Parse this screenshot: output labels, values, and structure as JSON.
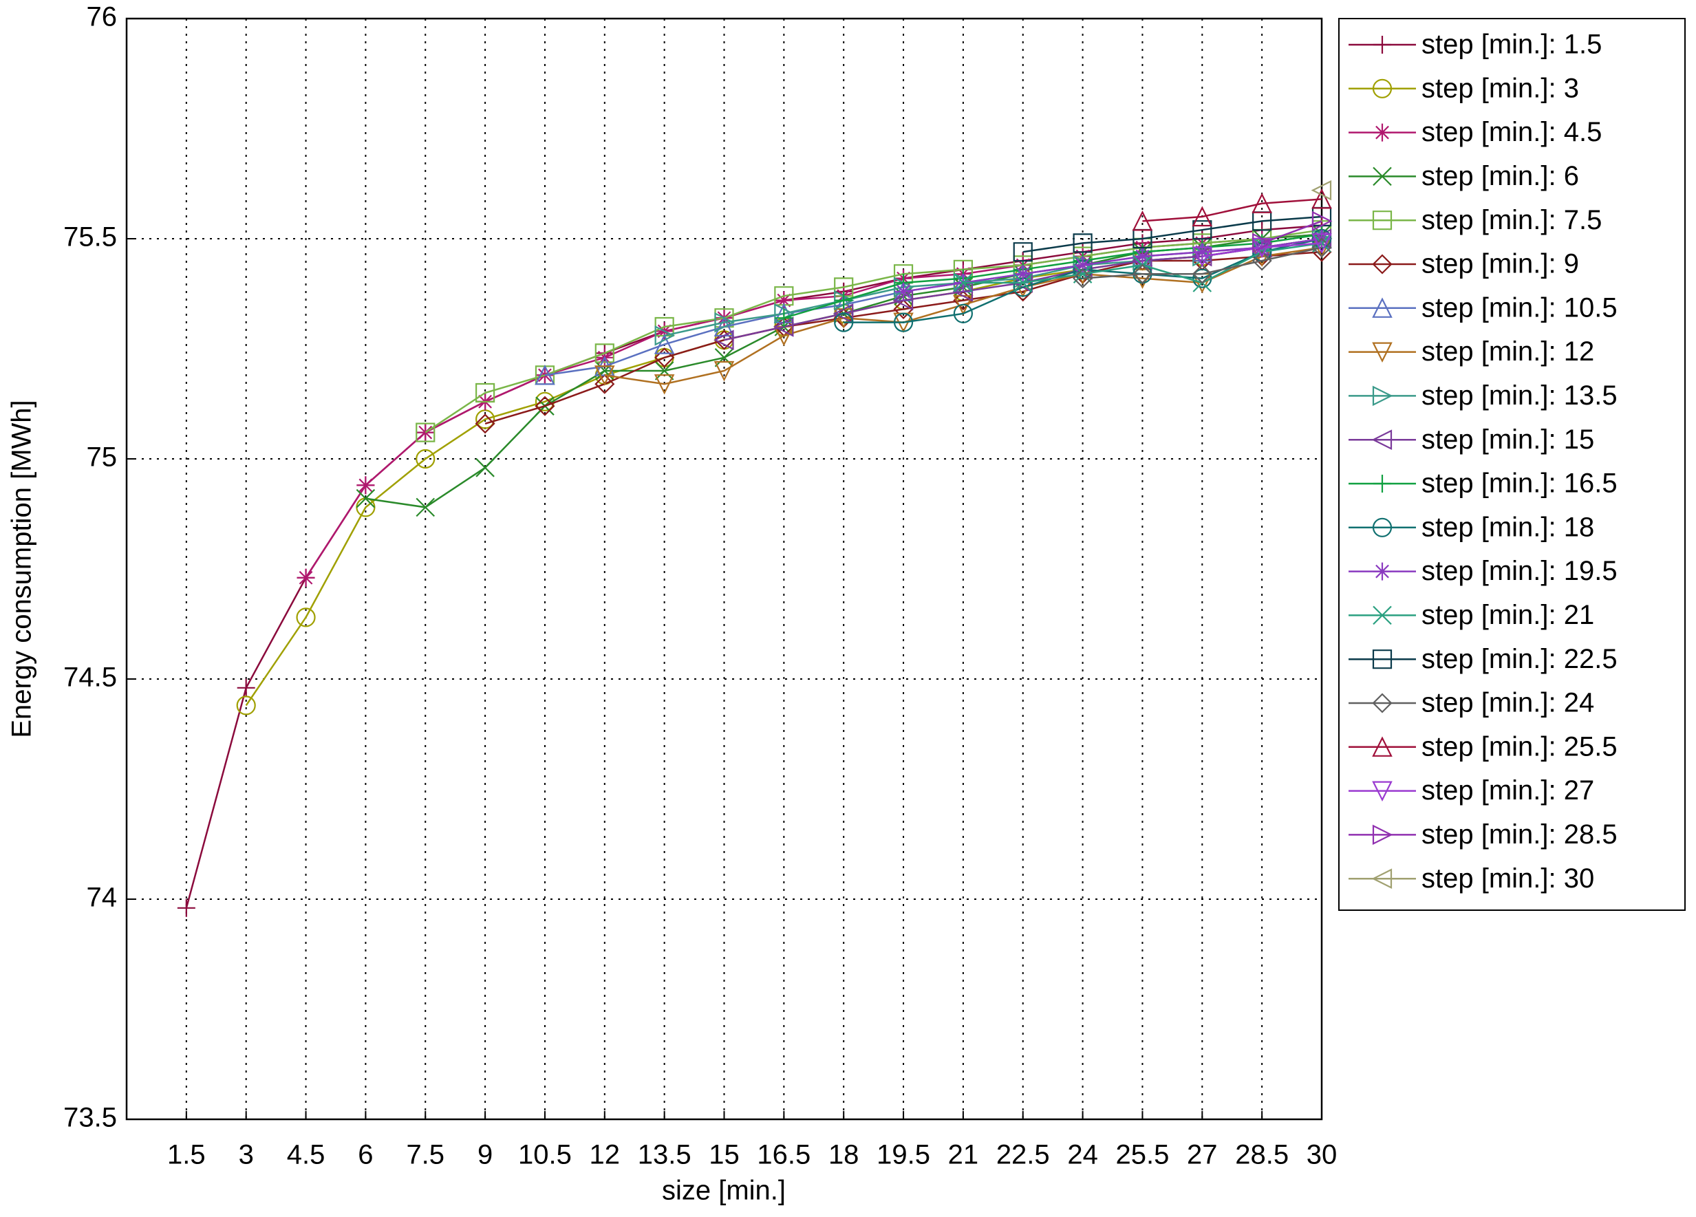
{
  "chart_data": {
    "type": "line",
    "x_label": "size [min.]",
    "y_label": "Energy consumption [MWh]",
    "x": [
      1.5,
      3,
      4.5,
      6,
      7.5,
      9,
      10.5,
      12,
      13.5,
      15,
      16.5,
      18,
      19.5,
      21,
      22.5,
      24,
      25.5,
      27,
      28.5,
      30
    ],
    "xlim": [
      0,
      30
    ],
    "xticks": [
      1.5,
      3,
      4.5,
      6,
      7.5,
      9,
      10.5,
      12,
      13.5,
      15,
      16.5,
      18,
      19.5,
      21,
      22.5,
      24,
      25.5,
      27,
      28.5,
      30
    ],
    "ylim": [
      73.5,
      76
    ],
    "yticks": [
      73.5,
      74,
      74.5,
      75,
      75.5,
      76
    ],
    "grid": true,
    "legend": "outside-right",
    "series": [
      {
        "name": "step [min.]: 1.5",
        "color": "#8b0a3c",
        "marker": "plus",
        "values": [
          73.98,
          74.48,
          74.73,
          74.94,
          75.06,
          75.13,
          75.19,
          75.24,
          75.29,
          75.32,
          75.36,
          75.38,
          75.41,
          75.43,
          75.45,
          75.47,
          75.49,
          75.5,
          75.52,
          75.53
        ]
      },
      {
        "name": "step [min.]: 3",
        "color": "#a0a000",
        "marker": "circle",
        "values": [
          null,
          74.44,
          74.64,
          74.89,
          75.0,
          75.09,
          75.13,
          75.19,
          75.23,
          75.27,
          75.3,
          75.33,
          75.36,
          75.38,
          75.41,
          75.43,
          75.45,
          75.46,
          75.48,
          75.5
        ]
      },
      {
        "name": "step [min.]: 4.5",
        "color": "#b0186e",
        "marker": "star",
        "values": [
          null,
          null,
          74.73,
          74.94,
          75.06,
          75.13,
          75.19,
          75.23,
          75.29,
          75.32,
          75.36,
          75.37,
          75.41,
          75.42,
          75.44,
          75.46,
          75.48,
          75.49,
          75.5,
          75.51
        ]
      },
      {
        "name": "step [min.]: 6",
        "color": "#2a8a2a",
        "marker": "x",
        "values": [
          null,
          null,
          null,
          74.91,
          74.89,
          74.98,
          75.12,
          75.2,
          75.2,
          75.23,
          75.3,
          75.33,
          75.37,
          75.39,
          75.42,
          75.44,
          75.47,
          75.48,
          75.5,
          75.51
        ]
      },
      {
        "name": "step [min.]: 7.5",
        "color": "#7ab648",
        "marker": "square",
        "values": [
          null,
          null,
          null,
          null,
          75.06,
          75.15,
          75.19,
          75.24,
          75.3,
          75.32,
          75.37,
          75.39,
          75.42,
          75.43,
          75.44,
          75.46,
          75.48,
          75.49,
          75.5,
          75.52
        ]
      },
      {
        "name": "step [min.]: 9",
        "color": "#8b1a1a",
        "marker": "diamond",
        "values": [
          null,
          null,
          null,
          null,
          null,
          75.08,
          75.12,
          75.17,
          75.23,
          75.27,
          75.3,
          75.32,
          75.34,
          75.36,
          75.38,
          75.42,
          75.45,
          75.45,
          75.46,
          75.47
        ]
      },
      {
        "name": "step [min.]: 10.5",
        "color": "#5a70c0",
        "marker": "triangle-up",
        "values": [
          null,
          null,
          null,
          null,
          null,
          null,
          75.19,
          75.21,
          75.26,
          75.3,
          75.33,
          75.35,
          75.38,
          75.4,
          75.42,
          75.44,
          75.46,
          75.47,
          75.48,
          75.5
        ]
      },
      {
        "name": "step [min.]: 12",
        "color": "#b07020",
        "marker": "triangle-down",
        "values": [
          null,
          null,
          null,
          null,
          null,
          null,
          null,
          75.19,
          75.17,
          75.2,
          75.28,
          75.32,
          75.31,
          75.35,
          75.39,
          75.42,
          75.41,
          75.4,
          75.46,
          75.48
        ]
      },
      {
        "name": "step [min.]: 13.5",
        "color": "#3a9a8a",
        "marker": "triangle-right",
        "values": [
          null,
          null,
          null,
          null,
          null,
          null,
          null,
          null,
          75.28,
          75.31,
          75.33,
          75.36,
          75.39,
          75.4,
          75.41,
          75.44,
          75.45,
          75.46,
          75.48,
          75.5
        ]
      },
      {
        "name": "step [min.]: 15",
        "color": "#7a3a9a",
        "marker": "triangle-left",
        "values": [
          null,
          null,
          null,
          null,
          null,
          null,
          null,
          null,
          null,
          75.27,
          75.3,
          75.33,
          75.36,
          75.38,
          75.4,
          75.43,
          75.45,
          75.46,
          75.48,
          75.5
        ]
      },
      {
        "name": "step [min.]: 16.5",
        "color": "#10a040",
        "marker": "plus",
        "values": [
          null,
          null,
          null,
          null,
          null,
          null,
          null,
          null,
          null,
          null,
          75.32,
          75.36,
          75.4,
          75.41,
          75.43,
          75.45,
          75.47,
          75.48,
          75.49,
          75.51
        ]
      },
      {
        "name": "step [min.]: 18",
        "color": "#107070",
        "marker": "circle",
        "values": [
          null,
          null,
          null,
          null,
          null,
          null,
          null,
          null,
          null,
          null,
          null,
          75.31,
          75.31,
          75.33,
          75.39,
          75.43,
          75.42,
          75.41,
          75.47,
          75.5
        ]
      },
      {
        "name": "step [min.]: 19.5",
        "color": "#8a3ac0",
        "marker": "star",
        "values": [
          null,
          null,
          null,
          null,
          null,
          null,
          null,
          null,
          null,
          null,
          null,
          null,
          75.38,
          75.4,
          75.42,
          75.44,
          75.46,
          75.47,
          75.48,
          75.5
        ]
      },
      {
        "name": "step [min.]: 21",
        "color": "#2aa080",
        "marker": "x",
        "values": [
          null,
          null,
          null,
          null,
          null,
          null,
          null,
          null,
          null,
          null,
          null,
          null,
          null,
          75.4,
          75.4,
          75.42,
          75.44,
          75.4,
          75.47,
          75.49
        ]
      },
      {
        "name": "step [min.]: 22.5",
        "color": "#0a3a4a",
        "marker": "square",
        "values": [
          null,
          null,
          null,
          null,
          null,
          null,
          null,
          null,
          null,
          null,
          null,
          null,
          null,
          null,
          75.47,
          75.49,
          75.5,
          75.52,
          75.54,
          75.55
        ]
      },
      {
        "name": "step [min.]: 24",
        "color": "#606060",
        "marker": "diamond",
        "values": [
          null,
          null,
          null,
          null,
          null,
          null,
          null,
          null,
          null,
          null,
          null,
          null,
          null,
          null,
          null,
          75.41,
          75.42,
          75.42,
          75.45,
          75.48
        ]
      },
      {
        "name": "step [min.]: 25.5",
        "color": "#a0103a",
        "marker": "triangle-up",
        "values": [
          null,
          null,
          null,
          null,
          null,
          null,
          null,
          null,
          null,
          null,
          null,
          null,
          null,
          null,
          null,
          null,
          75.54,
          75.55,
          75.58,
          75.59
        ]
      },
      {
        "name": "step [min.]: 27",
        "color": "#9a3ad0",
        "marker": "triangle-down",
        "values": [
          null,
          null,
          null,
          null,
          null,
          null,
          null,
          null,
          null,
          null,
          null,
          null,
          null,
          null,
          null,
          null,
          null,
          75.46,
          75.48,
          75.49
        ]
      },
      {
        "name": "step [min.]: 28.5",
        "color": "#9030b0",
        "marker": "triangle-right",
        "values": [
          null,
          null,
          null,
          null,
          null,
          null,
          null,
          null,
          null,
          null,
          null,
          null,
          null,
          null,
          null,
          null,
          null,
          null,
          75.49,
          75.54
        ]
      },
      {
        "name": "step [min.]: 30",
        "color": "#a0a070",
        "marker": "triangle-left",
        "values": [
          null,
          null,
          null,
          null,
          null,
          null,
          null,
          null,
          null,
          null,
          null,
          null,
          null,
          null,
          null,
          null,
          null,
          null,
          null,
          75.61
        ]
      }
    ]
  }
}
